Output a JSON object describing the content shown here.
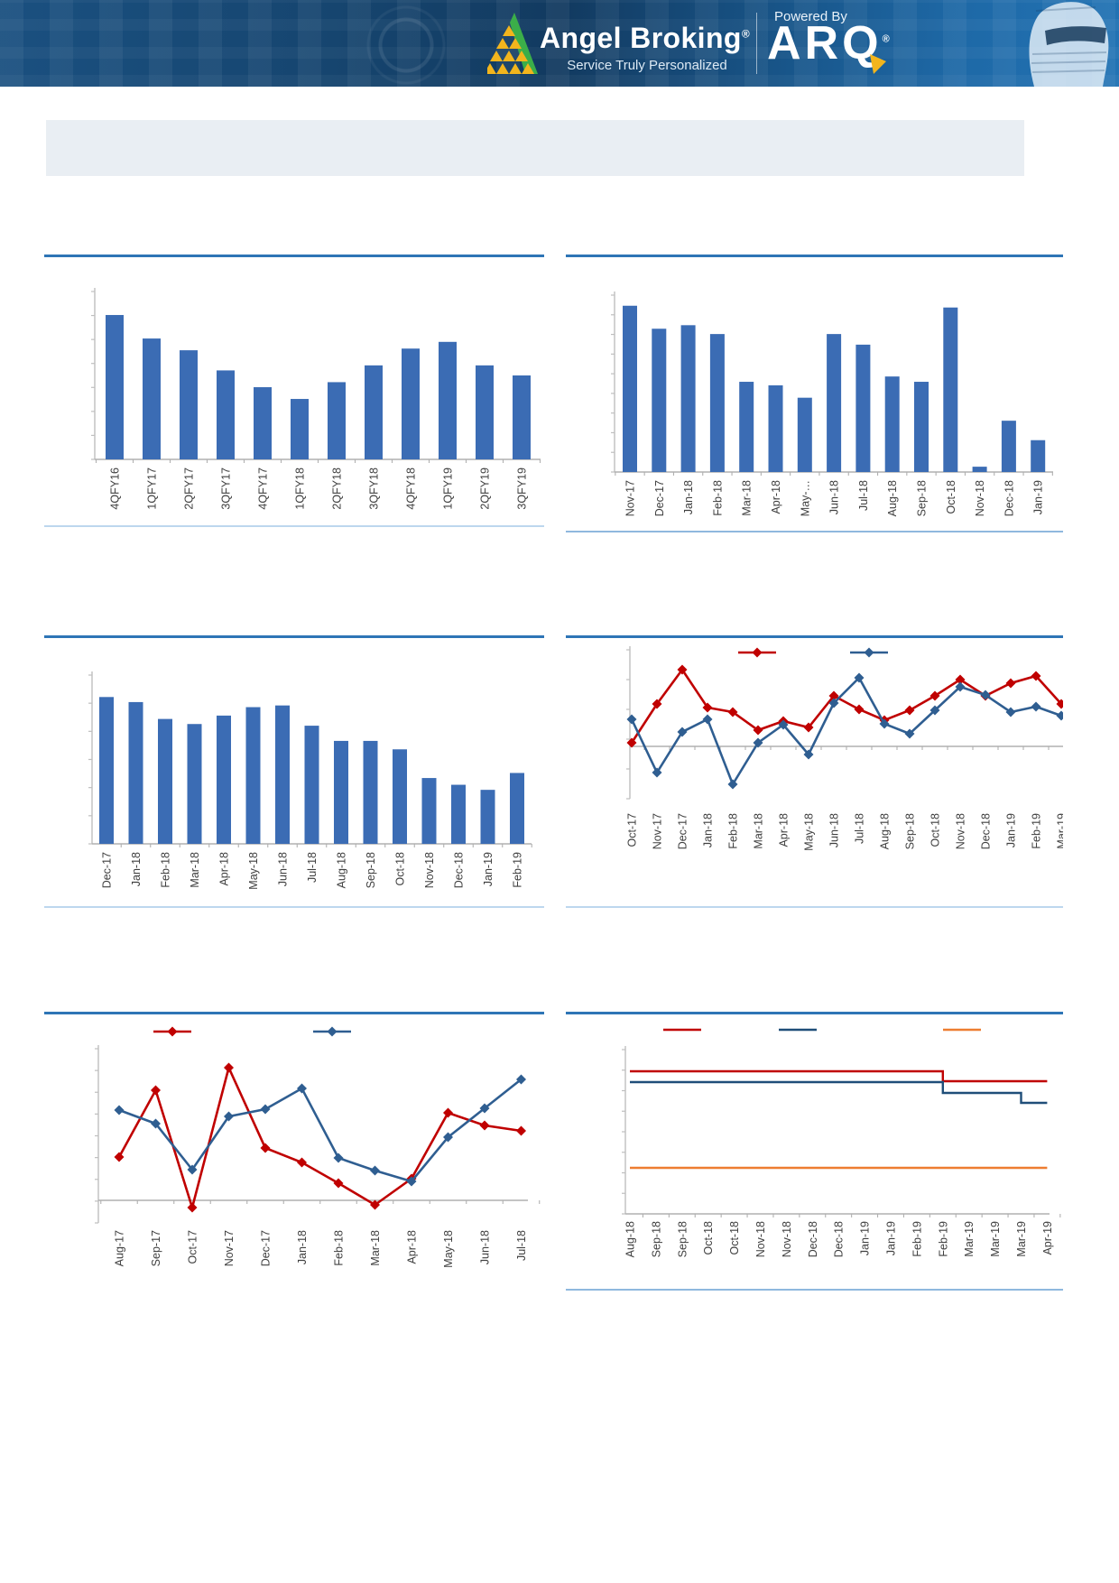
{
  "header": {
    "brand": "Angel Broking",
    "brand_reg": "®",
    "tagline": "Service Truly Personalized",
    "powered_by": "Powered By",
    "product": "ARQ",
    "product_reg": "®",
    "colors": {
      "band_blue": "#16456F",
      "logo_green": "#3BAE49",
      "logo_gold": "#F2B51D",
      "text_white": "#FFFFFF"
    }
  },
  "theme": {
    "divider_blue": "#2E75B6",
    "light_border": "#BDD7EE",
    "banner_bg": "#E9EEF3",
    "axis_gray": "#BFBFBF",
    "label_gray": "#404040"
  },
  "chart_data": [
    {
      "id": "quarterly-bar",
      "type": "bar",
      "bar_color": "#3B6CB4",
      "categories": [
        "4QFY16",
        "1QFY17",
        "2QFY17",
        "3QFY17",
        "4QFY17",
        "1QFY18",
        "2QFY18",
        "3QFY18",
        "4QFY18",
        "1QFY19",
        "2QFY19",
        "3QFY19"
      ],
      "values": [
        86,
        72,
        65,
        53,
        43,
        36,
        46,
        56,
        66,
        70,
        56,
        50
      ],
      "title": "",
      "xlabel": "",
      "ylabel": "",
      "ymax": 100,
      "grid": false,
      "y_axis_labels_visible": false
    },
    {
      "id": "monthly-bar-a",
      "type": "bar",
      "bar_color": "#3B6CB4",
      "categories": [
        "Nov-17",
        "Dec-17",
        "Jan-18",
        "Feb-18",
        "Mar-18",
        "Apr-18",
        "May-…",
        "Jun-18",
        "Jul-18",
        "Aug-18",
        "Sep-18",
        "Oct-18",
        "Nov-18",
        "Dec-18",
        "Jan-19"
      ],
      "values": [
        94,
        81,
        83,
        78,
        51,
        49,
        42,
        78,
        72,
        54,
        51,
        93,
        3,
        29,
        18
      ],
      "title": "",
      "xlabel": "",
      "ylabel": "",
      "ymax": 100,
      "grid": false,
      "y_axis_labels_visible": false
    },
    {
      "id": "monthly-bar-b",
      "type": "bar",
      "bar_color": "#3B6CB4",
      "categories": [
        "Dec-17",
        "Jan-18",
        "Feb-18",
        "Mar-18",
        "Apr-18",
        "May-18",
        "Jun-18",
        "Jul-18",
        "Aug-18",
        "Sep-18",
        "Oct-18",
        "Nov-18",
        "Dec-18",
        "Jan-19",
        "Feb-19"
      ],
      "values": [
        87,
        84,
        74,
        71,
        76,
        81,
        82,
        70,
        61,
        61,
        56,
        39,
        35,
        32,
        42
      ],
      "title": "",
      "xlabel": "",
      "ylabel": "",
      "ymax": 100,
      "grid": false,
      "y_axis_labels_visible": false
    },
    {
      "id": "dual-line-monthly",
      "type": "line",
      "categories": [
        "Oct-17",
        "Nov-17",
        "Dec-17",
        "Jan-18",
        "Feb-18",
        "Mar-18",
        "Apr-18",
        "May-18",
        "Jun-18",
        "Jul-18",
        "Aug-18",
        "Sep-18",
        "Oct-18",
        "Nov-18",
        "Dec-18",
        "Jan-19",
        "Feb-19",
        "Mar-19"
      ],
      "ymax": 107,
      "ymin": -58,
      "legend_position": "top-center",
      "series": [
        {
          "name": "",
          "color": "#C00000",
          "marker": "diamond",
          "values": [
            4,
            47,
            85,
            43,
            38,
            18,
            28,
            21,
            56,
            41,
            29,
            40,
            56,
            74,
            56,
            70,
            78,
            47
          ]
        },
        {
          "name": "",
          "color": "#2F5E91",
          "marker": "diamond",
          "values": [
            30,
            -29,
            16,
            30,
            -42,
            4,
            24,
            -9,
            48,
            76,
            25,
            14,
            40,
            66,
            57,
            38,
            44,
            34
          ]
        }
      ],
      "title": "",
      "xlabel": "",
      "ylabel": "",
      "y_axis_labels_visible": false
    },
    {
      "id": "dual-line-aug17-jul18",
      "type": "line",
      "categories": [
        "Aug-17",
        "Sep-17",
        "Oct-17",
        "Nov-17",
        "Dec-17",
        "Jan-18",
        "Feb-18",
        "Mar-18",
        "Apr-18",
        "May-18",
        "Jun-18",
        "Jul-18"
      ],
      "ymax": 168,
      "ymin": -25,
      "legend_position": "top-center",
      "series": [
        {
          "name": "",
          "color": "#C00000",
          "marker": "diamond",
          "values": [
            48,
            122,
            -8,
            147,
            58,
            42,
            19,
            -5,
            24,
            97,
            83,
            77
          ]
        },
        {
          "name": "",
          "color": "#2F5E91",
          "marker": "diamond",
          "values": [
            100,
            85,
            34,
            93,
            101,
            124,
            47,
            33,
            21,
            70,
            102,
            134
          ]
        }
      ],
      "title": "",
      "xlabel": "",
      "ylabel": "",
      "y_axis_labels_visible": false
    },
    {
      "id": "triple-step-line",
      "type": "line",
      "step": true,
      "categories": [
        "Aug-18",
        "Sep-18",
        "Sep-18",
        "Oct-18",
        "Oct-18",
        "Nov-18",
        "Nov-18",
        "Dec-18",
        "Dec-18",
        "Jan-19",
        "Jan-19",
        "Feb-19",
        "Feb-19",
        "Mar-19",
        "Mar-19",
        "Mar-19",
        "Apr-19"
      ],
      "ymax": 182,
      "ymin": 0,
      "legend_position": "top",
      "series": [
        {
          "name": "",
          "color": "#C00000",
          "values": [
            158,
            158,
            158,
            158,
            158,
            158,
            158,
            158,
            158,
            158,
            158,
            158,
            147,
            147,
            147,
            147,
            147
          ]
        },
        {
          "name": "",
          "color": "#1F4E79",
          "values": [
            146,
            146,
            146,
            146,
            146,
            146,
            146,
            146,
            146,
            146,
            146,
            146,
            134,
            134,
            134,
            123,
            123
          ]
        },
        {
          "name": "",
          "color": "#ED7D31",
          "values": [
            51,
            51,
            51,
            51,
            51,
            51,
            51,
            51,
            51,
            51,
            51,
            51,
            51,
            51,
            51,
            51,
            51
          ]
        }
      ],
      "title": "",
      "xlabel": "",
      "ylabel": "",
      "y_axis_labels_visible": false
    }
  ]
}
